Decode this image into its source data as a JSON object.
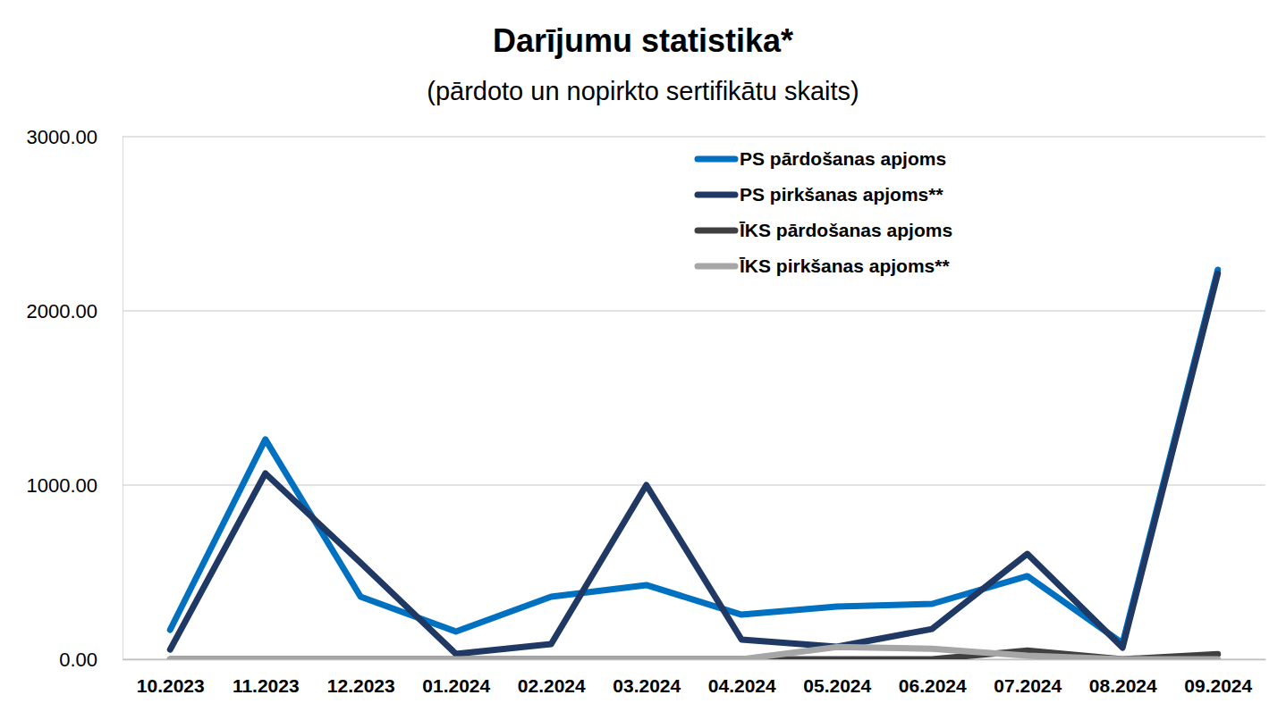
{
  "chart_data": {
    "type": "line",
    "title": "Darījumu statistika*",
    "subtitle": "(pārdoto un nopirkto sertifikātu skaits)",
    "categories": [
      "10.2023",
      "11.2023",
      "12.2023",
      "01.2024",
      "02.2024",
      "03.2024",
      "04.2024",
      "05.2024",
      "06.2024",
      "07.2024",
      "08.2024",
      "09.2024"
    ],
    "series": [
      {
        "name": "PS pārdošanas apjoms",
        "color": "#0070c0",
        "values": [
          169,
          1262,
          359,
          159,
          359,
          426,
          256,
          303,
          318,
          477,
          92,
          2236
        ]
      },
      {
        "name": "PS pirkšanas apjoms**",
        "color": "#1f3864",
        "values": [
          56,
          1067,
          554,
          31,
          87,
          1000,
          113,
          72,
          174,
          605,
          67,
          2215
        ]
      },
      {
        "name": "ĪKS pārdošanas apjoms",
        "color": "#404040",
        "values": [
          0,
          0,
          0,
          0,
          0,
          0,
          0,
          0,
          0,
          50,
          0,
          30
        ]
      },
      {
        "name": "ĪKS pirkšanas apjoms**",
        "color": "#a6a6a6",
        "values": [
          0,
          0,
          0,
          0,
          0,
          0,
          0,
          70,
          60,
          20,
          0,
          0
        ]
      }
    ],
    "ylim": [
      0,
      3000
    ],
    "yticks": [
      {
        "value": 0,
        "label": "0.00"
      },
      {
        "value": 1000,
        "label": "1000.00"
      },
      {
        "value": 2000,
        "label": "2000.00"
      },
      {
        "value": 3000,
        "label": "3000.00"
      }
    ],
    "grid": true,
    "legend": "upper right"
  }
}
